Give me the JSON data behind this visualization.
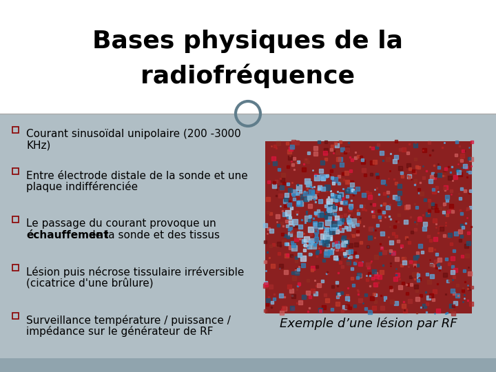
{
  "title_line1": "Bases physiques de la",
  "title_line2": "radiofréquence",
  "title_fontsize": 26,
  "title_color": "#000000",
  "title_bg": "#ffffff",
  "body_bg": "#b0bec5",
  "bottom_bar_color": "#90a4ae",
  "bullet_items": [
    {
      "lines": [
        "Courant sinusoïdal unipolaire (200 -3000",
        "KHz)"
      ],
      "bold_word": null
    },
    {
      "lines": [
        "Entre électrode distale de la sonde et une",
        "plaque indifférenciée"
      ],
      "bold_word": null
    },
    {
      "lines": [
        "Le passage du courant provoque un",
        "échauffement de la sonde et des tissus"
      ],
      "bold_word": "échauffement"
    },
    {
      "lines": [
        "Lésion puis nécrose tissulaire irréversible",
        "(cicatrice d'une brûlure)"
      ],
      "bold_word": null
    },
    {
      "lines": [
        "Surveillance température / puissance /",
        "impédance sur le générateur de RF"
      ],
      "bold_word": null
    }
  ],
  "bullet_color": "#8B0000",
  "bullet_size": 9,
  "text_fontsize": 11,
  "caption": "Exemple d’une lésion par RF",
  "caption_fontsize": 13,
  "circle_color": "#607d8b",
  "circle_edgecolor": "#607d8b"
}
